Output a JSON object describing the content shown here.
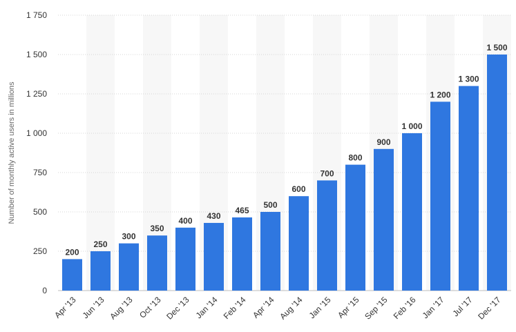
{
  "chart_data": {
    "type": "bar",
    "categories": [
      "Apr '13",
      "Jun '13",
      "Aug '13",
      "Oct '13",
      "Dec '13",
      "Jan '14",
      "Feb '14",
      "Apr '14",
      "Aug '14",
      "Jan '15",
      "Apr '15",
      "Sep '15",
      "Feb '16",
      "Jan '17",
      "Jul '17",
      "Dec '17"
    ],
    "values": [
      200,
      250,
      300,
      350,
      400,
      430,
      465,
      500,
      600,
      700,
      800,
      900,
      1000,
      1200,
      1300,
      1500
    ],
    "data_labels": [
      "200",
      "250",
      "300",
      "350",
      "400",
      "430",
      "465",
      "500",
      "600",
      "700",
      "800",
      "900",
      "1 000",
      "1 200",
      "1 300",
      "1 500"
    ],
    "ylabel": "Number of monthly active users in millions",
    "xlabel": "",
    "ylim": [
      0,
      1750
    ],
    "yticks": [
      0,
      250,
      500,
      750,
      1000,
      1250,
      1500,
      1750
    ],
    "ytick_labels": [
      "0",
      "250",
      "500",
      "750",
      "1 000",
      "1 250",
      "1 500",
      "1 750"
    ],
    "grid": true,
    "alternating_column_bands": true,
    "bar_color": "#2f77e0",
    "band_color": "#f7f7f7",
    "grid_color": "#d4d4d4"
  }
}
